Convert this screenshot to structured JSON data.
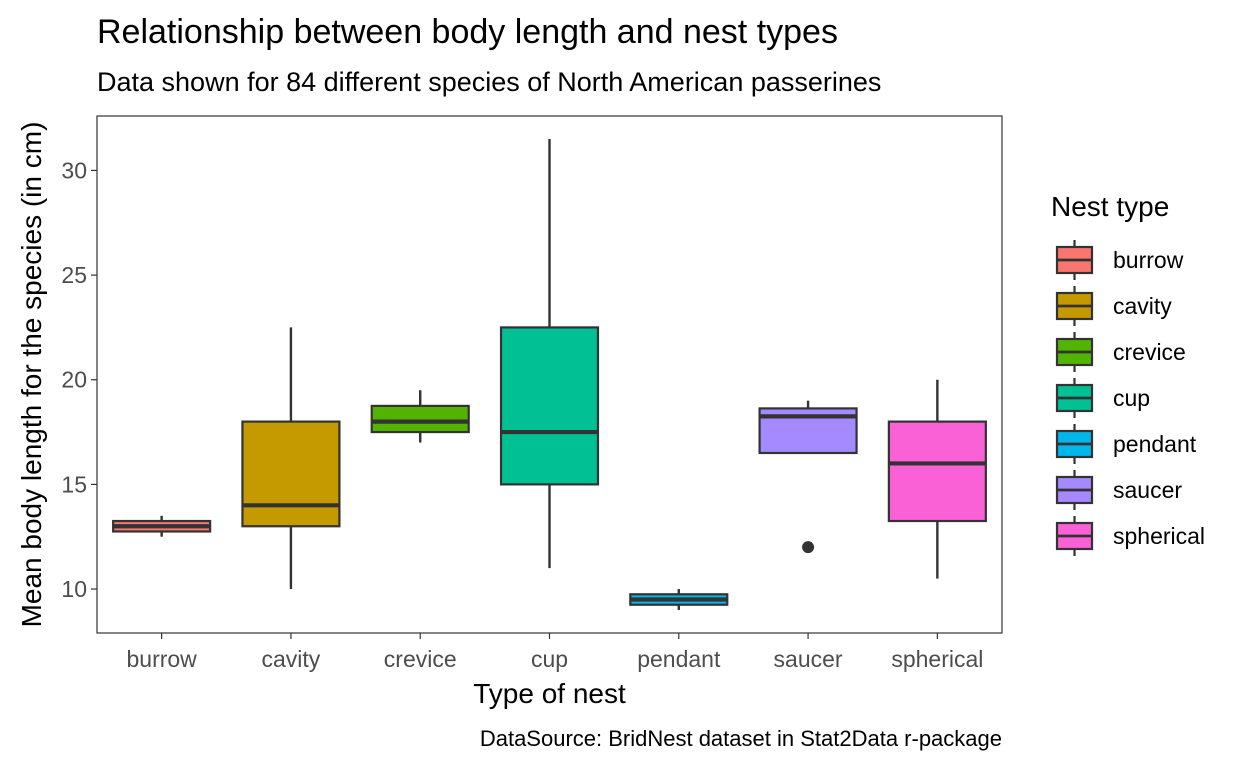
{
  "chart_data": {
    "type": "boxplot",
    "title": "Relationship between body length and nest types",
    "subtitle": "Data shown for 84 different species of North American passerines",
    "xlabel": "Type of nest",
    "ylabel": "Mean body length for the species (in cm)",
    "caption": "DataSource: BridNest dataset in Stat2Data r-package",
    "ylim": [
      7.9,
      32.6
    ],
    "yticks": [
      10,
      15,
      20,
      25,
      30
    ],
    "grid": false,
    "legend": {
      "title": "Nest type",
      "position": "right"
    },
    "categories": [
      "burrow",
      "cavity",
      "crevice",
      "cup",
      "pendant",
      "saucer",
      "spherical"
    ],
    "series": [
      {
        "name": "burrow",
        "color": "#F8766D",
        "whisker_low": 12.5,
        "q1": 12.75,
        "median": 13.0,
        "q3": 13.25,
        "whisker_high": 13.5,
        "outliers": []
      },
      {
        "name": "cavity",
        "color": "#C49A00",
        "whisker_low": 10.0,
        "q1": 13.0,
        "median": 14.0,
        "q3": 18.0,
        "whisker_high": 22.5,
        "outliers": []
      },
      {
        "name": "crevice",
        "color": "#53B400",
        "whisker_low": 17.0,
        "q1": 17.5,
        "median": 18.0,
        "q3": 18.75,
        "whisker_high": 19.5,
        "outliers": []
      },
      {
        "name": "cup",
        "color": "#00C094",
        "whisker_low": 11.0,
        "q1": 15.0,
        "median": 17.5,
        "q3": 22.5,
        "whisker_high": 31.5,
        "outliers": []
      },
      {
        "name": "pendant",
        "color": "#00B6EB",
        "whisker_low": 9.0,
        "q1": 9.25,
        "median": 9.5,
        "q3": 9.75,
        "whisker_high": 10.0,
        "outliers": []
      },
      {
        "name": "saucer",
        "color": "#A58AFF",
        "whisker_low": 16.5,
        "q1": 16.5,
        "median": 18.25,
        "q3": 18.63,
        "whisker_high": 19.0,
        "outliers": [
          12.0
        ]
      },
      {
        "name": "spherical",
        "color": "#FB61D7",
        "whisker_low": 10.5,
        "q1": 13.25,
        "median": 16.0,
        "q3": 18.0,
        "whisker_high": 20.0,
        "outliers": []
      }
    ]
  }
}
